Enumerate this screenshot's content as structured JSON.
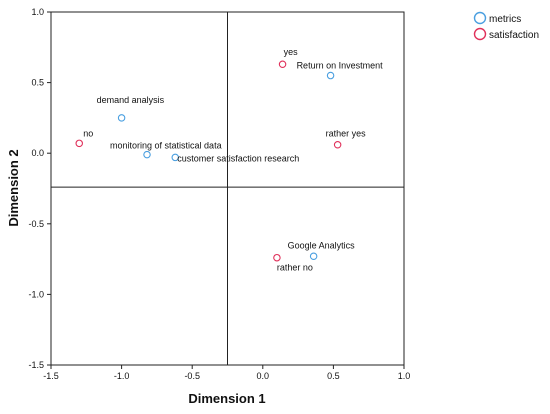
{
  "chart_data": {
    "type": "scatter",
    "xlabel": "Dimension 1",
    "ylabel": "Dimension 2",
    "xlim": [
      -1.5,
      1.0
    ],
    "ylim": [
      -1.5,
      1.0
    ],
    "x_ticks": [
      -1.5,
      -1.0,
      -0.5,
      0.0,
      0.5,
      1.0
    ],
    "y_ticks": [
      -1.5,
      -1.0,
      -0.5,
      0.0,
      0.5,
      1.0
    ],
    "x_tick_labels": [
      "-1.5",
      "-1.0",
      "-0.5",
      "0.0",
      "0.5",
      "1.0"
    ],
    "y_tick_labels": [
      "-1.5",
      "-1.0",
      "-0.5",
      "0.0",
      "0.5",
      "1.0"
    ],
    "reference_lines": {
      "x": -0.25,
      "y": -0.24
    },
    "grid": false,
    "legend_position": "top-right",
    "series": [
      {
        "name": "metrics",
        "color": "#4a9fe0",
        "points": [
          {
            "label": "demand analysis",
            "x": -1.0,
            "y": 0.25
          },
          {
            "label": "monitoring of statistical data",
            "x": -0.82,
            "y": -0.01
          },
          {
            "label": "customer satisfaction research",
            "x": -0.62,
            "y": -0.03
          },
          {
            "label": "Return on Investment",
            "x": 0.48,
            "y": 0.55
          },
          {
            "label": "Google Analytics",
            "x": 0.36,
            "y": -0.73
          }
        ]
      },
      {
        "name": "satisfaction",
        "color": "#e0305a",
        "points": [
          {
            "label": "no",
            "x": -1.3,
            "y": 0.07
          },
          {
            "label": "yes",
            "x": 0.14,
            "y": 0.63
          },
          {
            "label": "rather yes",
            "x": 0.53,
            "y": 0.06
          },
          {
            "label": "rather no",
            "x": 0.1,
            "y": -0.74
          }
        ]
      }
    ]
  }
}
